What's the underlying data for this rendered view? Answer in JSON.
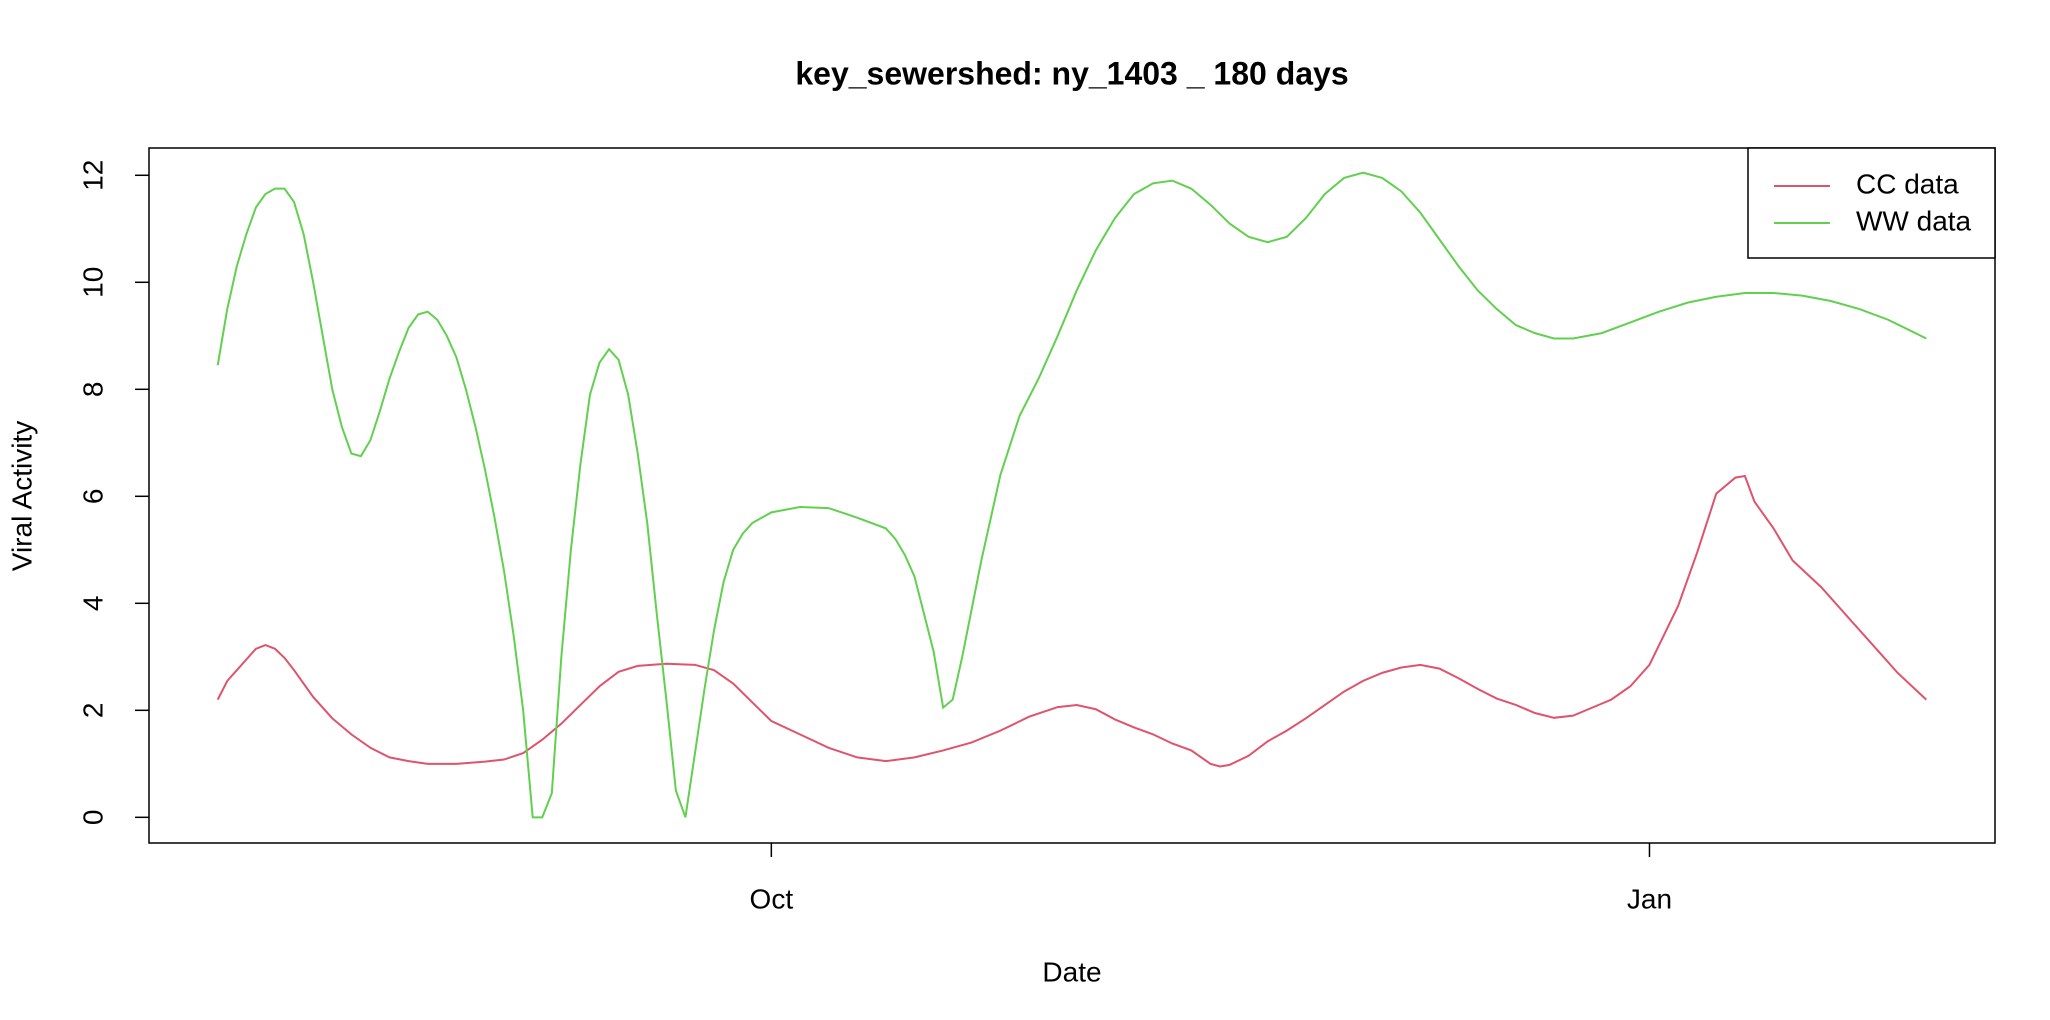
{
  "chart_data": {
    "type": "line",
    "title": "key_sewershed:  ny_1403 _ 180  days",
    "x_label": "Date",
    "y_label": "Viral Activity",
    "xlim": [
      -65.2,
      128.2
    ],
    "ylim": [
      -0.48,
      12.51
    ],
    "xticks": [
      {
        "value": 0,
        "label": "Oct"
      },
      {
        "value": 92,
        "label": "Jan"
      }
    ],
    "yticks": [
      0,
      2,
      4,
      6,
      8,
      10,
      12
    ],
    "legend": "top-right",
    "series": [
      {
        "name": "CC data",
        "color": "#DF536B",
        "x": [
          -58,
          -57,
          -56,
          -55,
          -54,
          -53,
          -52,
          -51,
          -50,
          -48,
          -46,
          -44,
          -42,
          -40,
          -38,
          -36,
          -33,
          -30,
          -28,
          -26,
          -24,
          -22,
          -20,
          -18,
          -16,
          -14,
          -11,
          -8,
          -6,
          -4,
          -2,
          0,
          3,
          6,
          9,
          12,
          15,
          18,
          21,
          24,
          27,
          30,
          32,
          34,
          36,
          38,
          40,
          42,
          44,
          46,
          47,
          48,
          50,
          52,
          54,
          56,
          58,
          60,
          62,
          64,
          66,
          68,
          70,
          72,
          74,
          76,
          78,
          80,
          82,
          84,
          86,
          88,
          90,
          92,
          95,
          97,
          99,
          101,
          102,
          103,
          105,
          107,
          110,
          113,
          116,
          118,
          121
        ],
        "values": [
          2.2,
          2.55,
          2.75,
          2.95,
          3.15,
          3.22,
          3.15,
          2.98,
          2.75,
          2.25,
          1.85,
          1.55,
          1.3,
          1.12,
          1.05,
          1.0,
          1.0,
          1.04,
          1.08,
          1.2,
          1.45,
          1.75,
          2.1,
          2.45,
          2.72,
          2.83,
          2.87,
          2.85,
          2.75,
          2.5,
          2.15,
          1.8,
          1.55,
          1.3,
          1.12,
          1.05,
          1.12,
          1.25,
          1.4,
          1.62,
          1.88,
          2.06,
          2.1,
          2.02,
          1.83,
          1.68,
          1.55,
          1.38,
          1.25,
          1.0,
          0.95,
          0.98,
          1.15,
          1.42,
          1.62,
          1.85,
          2.1,
          2.35,
          2.55,
          2.7,
          2.8,
          2.85,
          2.78,
          2.6,
          2.4,
          2.22,
          2.1,
          1.95,
          1.86,
          1.9,
          2.05,
          2.2,
          2.45,
          2.85,
          3.95,
          4.95,
          6.05,
          6.35,
          6.38,
          5.9,
          5.4,
          4.8,
          4.3,
          3.7,
          3.1,
          2.7,
          2.2
        ]
      },
      {
        "name": "WW data",
        "color": "#61D04F",
        "x": [
          -58,
          -57,
          -56,
          -55,
          -54,
          -53,
          -52,
          -51,
          -50,
          -49,
          -48,
          -47,
          -46,
          -45,
          -44,
          -43,
          -42,
          -41,
          -40,
          -39,
          -38,
          -37,
          -36,
          -35,
          -34,
          -33,
          -32,
          -31,
          -30,
          -29,
          -28,
          -27,
          -26,
          -25,
          -24,
          -23,
          -22,
          -21,
          -20,
          -19,
          -18,
          -17,
          -16,
          -15,
          -14,
          -13,
          -12,
          -11,
          -10,
          -9,
          -8,
          -7,
          -6,
          -5,
          -4,
          -3,
          -2,
          0,
          3,
          6,
          9,
          12,
          13,
          14,
          15,
          16,
          17,
          18,
          19,
          20,
          22,
          24,
          26,
          28,
          30,
          32,
          34,
          36,
          38,
          40,
          42,
          44,
          46,
          48,
          50,
          52,
          54,
          56,
          58,
          60,
          62,
          64,
          66,
          68,
          70,
          72,
          74,
          76,
          78,
          80,
          82,
          84,
          87,
          90,
          93,
          96,
          99,
          102,
          105,
          108,
          111,
          114,
          117,
          121
        ],
        "values": [
          8.45,
          9.5,
          10.3,
          10.9,
          11.4,
          11.65,
          11.75,
          11.75,
          11.5,
          10.9,
          10.0,
          9.0,
          8.0,
          7.3,
          6.8,
          6.75,
          7.05,
          7.6,
          8.2,
          8.7,
          9.15,
          9.4,
          9.45,
          9.3,
          9.0,
          8.6,
          8.0,
          7.3,
          6.5,
          5.6,
          4.6,
          3.4,
          2.0,
          0.0,
          0.0,
          0.45,
          3.0,
          5.0,
          6.6,
          7.9,
          8.5,
          8.75,
          8.55,
          7.9,
          6.8,
          5.5,
          3.8,
          2.2,
          0.5,
          0.0,
          1.2,
          2.4,
          3.5,
          4.4,
          5.0,
          5.3,
          5.5,
          5.7,
          5.8,
          5.78,
          5.6,
          5.4,
          5.2,
          4.9,
          4.5,
          3.8,
          3.1,
          2.05,
          2.2,
          3.0,
          4.8,
          6.4,
          7.5,
          8.2,
          9.0,
          9.85,
          10.6,
          11.2,
          11.65,
          11.85,
          11.9,
          11.75,
          11.45,
          11.1,
          10.85,
          10.75,
          10.85,
          11.2,
          11.65,
          11.95,
          12.05,
          11.95,
          11.7,
          11.3,
          10.8,
          10.3,
          9.85,
          9.5,
          9.2,
          9.05,
          8.95,
          8.95,
          9.05,
          9.25,
          9.45,
          9.62,
          9.73,
          9.8,
          9.8,
          9.75,
          9.65,
          9.5,
          9.3,
          8.95
        ]
      }
    ]
  }
}
